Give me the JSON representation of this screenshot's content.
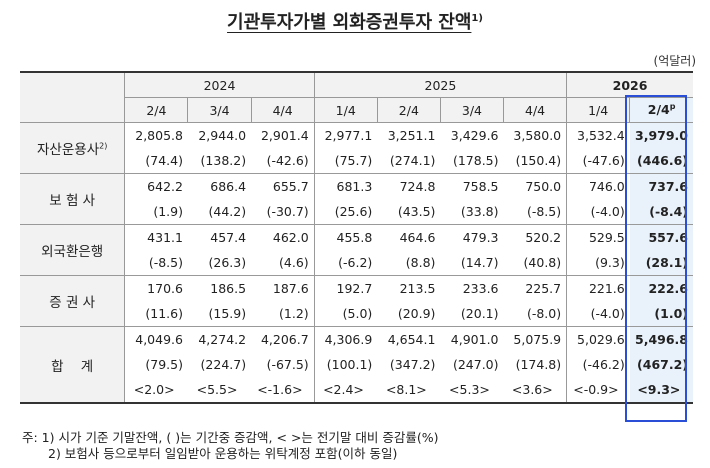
{
  "title": "기관투자가별 외화증권투자 잔액",
  "title_sup": "1)",
  "unit": "(억달러)",
  "header": {
    "years": [
      {
        "label": "2024",
        "span": 3
      },
      {
        "label": "2025",
        "span": 4
      },
      {
        "label": "2026",
        "span": 2
      }
    ],
    "quarters": [
      "2/4",
      "3/4",
      "4/4",
      "1/4",
      "2/4",
      "3/4",
      "4/4",
      "1/4",
      "2/4"
    ],
    "last_quarter_sup": "p"
  },
  "rows": [
    {
      "label": "자산운용사",
      "label_sup": "2)",
      "values": [
        "2,805.8",
        "2,944.0",
        "2,901.4",
        "2,977.1",
        "3,251.1",
        "3,429.6",
        "3,580.0",
        "3,532.4",
        "3,979.0"
      ],
      "changes": [
        "(74.4)",
        "(138.2)",
        "(-42.6)",
        "(75.7)",
        "(274.1)",
        "(178.5)",
        "(150.4)",
        "(-47.6)",
        "(446.6)"
      ]
    },
    {
      "label": "보 험 사",
      "values": [
        "642.2",
        "686.4",
        "655.7",
        "681.3",
        "724.8",
        "758.5",
        "750.0",
        "746.0",
        "737.6"
      ],
      "changes": [
        "(1.9)",
        "(44.2)",
        "(-30.7)",
        "(25.6)",
        "(43.5)",
        "(33.8)",
        "(-8.5)",
        "(-4.0)",
        "(-8.4)"
      ]
    },
    {
      "label": "외국환은행",
      "values": [
        "431.1",
        "457.4",
        "462.0",
        "455.8",
        "464.6",
        "479.3",
        "520.2",
        "529.5",
        "557.6"
      ],
      "changes": [
        "(-8.5)",
        "(26.3)",
        "(4.6)",
        "(-6.2)",
        "(8.8)",
        "(14.7)",
        "(40.8)",
        "(9.3)",
        "(28.1)"
      ]
    },
    {
      "label": "증 권 사",
      "values": [
        "170.6",
        "186.5",
        "187.6",
        "192.7",
        "213.5",
        "233.6",
        "225.7",
        "221.6",
        "222.6"
      ],
      "changes": [
        "(11.6)",
        "(15.9)",
        "(1.2)",
        "(5.0)",
        "(20.9)",
        "(20.1)",
        "(-8.0)",
        "(-4.0)",
        "(1.0)"
      ]
    },
    {
      "label": "합    계",
      "values": [
        "4,049.6",
        "4,274.2",
        "4,206.7",
        "4,306.9",
        "4,654.1",
        "4,901.0",
        "5,075.9",
        "5,029.6",
        "5,496.8"
      ],
      "changes": [
        "(79.5)",
        "(224.7)",
        "(-67.5)",
        "(100.1)",
        "(347.2)",
        "(247.0)",
        "(174.8)",
        "(-46.2)",
        "(467.2)"
      ],
      "rates": [
        "<2.0>",
        "<5.5>",
        "<-1.6>",
        "<2.4>",
        "<8.1>",
        "<5.3>",
        "<3.6>",
        "<-0.9>",
        "<9.3>"
      ]
    }
  ],
  "notes": [
    "주: 1) 시가 기준 기말잔액, (    )는 기간중 증감액, <    >는 전기말 대비 증감률(%)",
    "2) 보험사 등으로부터 일임받아 운용하는 위탁계정 포함(이하 동일)"
  ]
}
